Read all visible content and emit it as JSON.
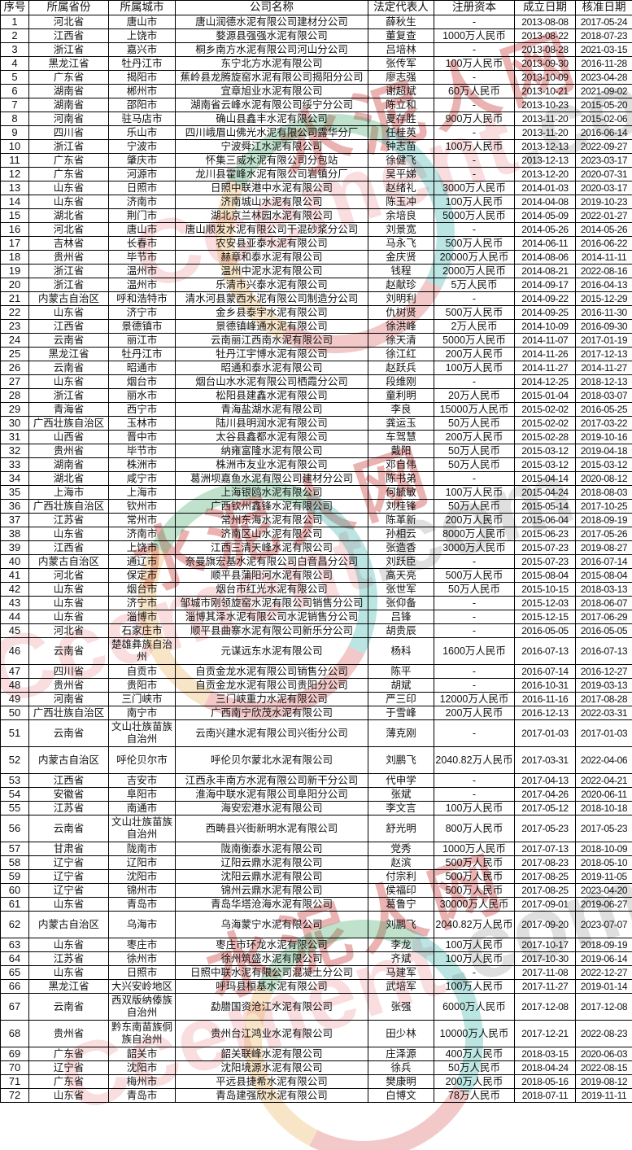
{
  "watermark": {
    "en": "Ccement",
    "com": ".com",
    "cn": "水泥人网"
  },
  "colors": {
    "watermark_red": "#cd3e3e",
    "watermark_pink": "#ec8e96",
    "watermark_gray": "#8c8c8c",
    "ring_green": "#2e9e5b",
    "ring_teal": "#1fa8a0",
    "ring_red": "#d23c3c",
    "ring_orange": "#e8a23c",
    "border": "#000000",
    "background": "#ffffff"
  },
  "table": {
    "headers": [
      "序号",
      "所属省份",
      "所属城市",
      "公司名称",
      "法定代表人",
      "注册资本",
      "成立日期",
      "核准日期"
    ],
    "rows": [
      [
        "1",
        "河北省",
        "唐山市",
        "唐山润德水泥有限公司建材分公司",
        "薛秋生",
        "-",
        "2013-08-08",
        "2017-05-24"
      ],
      [
        "2",
        "江西省",
        "上饶市",
        "婺源县强强水泥有限公司",
        "董复查",
        "1000万人民币",
        "2013-08-22",
        "2018-07-23"
      ],
      [
        "3",
        "浙江省",
        "嘉兴市",
        "桐乡南方水泥有限公司河山分公司",
        "吕培林",
        "-",
        "2013-08-28",
        "2021-03-15"
      ],
      [
        "4",
        "黑龙江省",
        "牡丹江市",
        "东宁北方水泥有限公司",
        "张传军",
        "100万人民币",
        "2013-09-30",
        "2016-11-28"
      ],
      [
        "5",
        "广东省",
        "揭阳市",
        "蕉岭县龙腾旋窑水泥有限公司揭阳分公司",
        "廖志强",
        "-",
        "2013-10-09",
        "2023-04-28"
      ],
      [
        "6",
        "湖南省",
        "郴州市",
        "宜章旭业水泥有限公司",
        "谢超斌",
        "60万人民币",
        "2013-10-21",
        "2021-09-02"
      ],
      [
        "7",
        "湖南省",
        "邵阳市",
        "湖南省云峰水泥有限公司绥宁分公司",
        "陈立和",
        "-",
        "2013-10-23",
        "2015-05-20"
      ],
      [
        "8",
        "河南省",
        "驻马店市",
        "确山县鑫丰水泥有限公司",
        "夏存胜",
        "900万人民币",
        "2013-11-20",
        "2015-02-06"
      ],
      [
        "9",
        "四川省",
        "乐山市",
        "四川峨眉山佛光水泥有限公司露华分厂",
        "任桂英",
        "-",
        "2013-11-20",
        "2016-06-14"
      ],
      [
        "10",
        "浙江省",
        "宁波市",
        "宁波舜江水泥有限公司",
        "钟志苗",
        "100万人民币",
        "2013-12-13",
        "2022-09-27"
      ],
      [
        "11",
        "广东省",
        "肇庆市",
        "怀集三威水泥有限公司分包站",
        "徐健飞",
        "-",
        "2013-12-13",
        "2023-03-17"
      ],
      [
        "12",
        "广东省",
        "河源市",
        "龙川县霍峰水泥有限公司岩镇分厂",
        "吴平娣",
        "-",
        "2013-12-20",
        "2020-07-31"
      ],
      [
        "13",
        "山东省",
        "日照市",
        "日照中联港中水泥有限公司",
        "赵绪礼",
        "3000万人民币",
        "2014-01-03",
        "2020-03-17"
      ],
      [
        "14",
        "山东省",
        "济南市",
        "济南城山水泥有限公司",
        "陈玉冲",
        "100万人民币",
        "2014-04-08",
        "2019-10-23"
      ],
      [
        "15",
        "湖北省",
        "荆门市",
        "湖北京兰林园水泥有限公司",
        "余培良",
        "5000万人民币",
        "2014-05-09",
        "2022-01-27"
      ],
      [
        "16",
        "河北省",
        "唐山市",
        "唐山顺发水泥有限公司干混砂浆分公司",
        "刘景宽",
        "-",
        "2014-05-26",
        "2014-05-26"
      ],
      [
        "17",
        "吉林省",
        "长春市",
        "农安县亚泰水泥有限公司",
        "马永飞",
        "500万人民币",
        "2014-06-11",
        "2016-06-22"
      ],
      [
        "18",
        "贵州省",
        "毕节市",
        "赫章和泰水泥有限公司",
        "金庆贤",
        "20000万人民币",
        "2014-08-06",
        "2014-11-11"
      ],
      [
        "19",
        "浙江省",
        "温州市",
        "温州中泥水泥有限公司",
        "钱程",
        "2000万人民币",
        "2014-08-21",
        "2022-08-16"
      ],
      [
        "20",
        "浙江省",
        "温州市",
        "乐清市兴泰水泥有限公司",
        "赵献珍",
        "5万人民币",
        "2014-09-17",
        "2016-04-13"
      ],
      [
        "21",
        "内蒙古自治区",
        "呼和浩特市",
        "清水河县蒙西水泥有限公司制造分公司",
        "刘明利",
        "-",
        "2014-09-22",
        "2015-12-29"
      ],
      [
        "22",
        "山东省",
        "济宁市",
        "金乡县泰宇水泥有限公司",
        "仇树贤",
        "500万人民币",
        "2014-09-25",
        "2016-11-30"
      ],
      [
        "23",
        "江西省",
        "景德镇市",
        "景德镇峰通水泥有限公司",
        "徐洪峰",
        "2万人民币",
        "2014-10-09",
        "2016-09-30"
      ],
      [
        "24",
        "云南省",
        "丽江市",
        "云南丽江西南水泥有限公司",
        "徐天清",
        "5000万人民币",
        "2014-11-07",
        "2017-01-19"
      ],
      [
        "25",
        "黑龙江省",
        "牡丹江市",
        "牡丹江宇博水泥有限公司",
        "徐江红",
        "200万人民币",
        "2014-11-26",
        "2017-12-13"
      ],
      [
        "26",
        "云南省",
        "昭通市",
        "昭通和泰水泥有限公司",
        "赵跃兵",
        "100万人民币",
        "2014-11-27",
        "2014-11-27"
      ],
      [
        "27",
        "山东省",
        "烟台市",
        "烟台山水水泥有限公司栖霞分公司",
        "段维刚",
        "-",
        "2014-12-25",
        "2018-12-13"
      ],
      [
        "28",
        "浙江省",
        "丽水市",
        "松阳县建鑫水泥有限公司",
        "童利明",
        "20万人民币",
        "2015-01-04",
        "2018-03-07"
      ],
      [
        "29",
        "青海省",
        "西宁市",
        "青海盐湖水泥有限公司",
        "李良",
        "15000万人民币",
        "2015-02-02",
        "2016-05-25"
      ],
      [
        "30",
        "广西壮族自治区",
        "玉林市",
        "陆川县明润水泥有限公司",
        "龚运玉",
        "50万人民币",
        "2015-02-02",
        "2017-03-22"
      ],
      [
        "31",
        "山西省",
        "晋中市",
        "太谷县鑫都水泥有限公司",
        "车驾慧",
        "200万人民币",
        "2015-02-28",
        "2019-10-16"
      ],
      [
        "32",
        "贵州省",
        "毕节市",
        "纳雍富隆水泥有限公司",
        "戴阳",
        "50万人民币",
        "2015-03-12",
        "2019-04-18"
      ],
      [
        "33",
        "湖南省",
        "株洲市",
        "株洲市友业水泥有限公司",
        "邓自伟",
        "50万人民币",
        "2015-03-12",
        "2015-03-12"
      ],
      [
        "34",
        "湖北省",
        "咸宁市",
        "葛洲坝嘉鱼水泥有限公司建材分公司",
        "陈书弟",
        "-",
        "2015-04-14",
        "2020-08-12"
      ],
      [
        "35",
        "上海市",
        "上海市",
        "上海银鸥水泥有限公司",
        "何毓敏",
        "100万人民币",
        "2015-04-24",
        "2018-08-03"
      ],
      [
        "36",
        "广西壮族自治区",
        "钦州市",
        "广西钦州鑫锋水泥有限公司",
        "刘桂锋",
        "50万人民币",
        "2015-05-14",
        "2017-10-25"
      ],
      [
        "37",
        "江苏省",
        "常州市",
        "常州东海水泥有限公司",
        "陈革新",
        "200万人民币",
        "2015-06-04",
        "2018-09-19"
      ],
      [
        "38",
        "山东省",
        "济南市",
        "济南区山水泥有限公司",
        "孙相云",
        "8000万人民币",
        "2015-06-23",
        "2017-05-26"
      ],
      [
        "39",
        "江西省",
        "上饶市",
        "江西三清天峰水泥有限公司",
        "张造香",
        "3000万人民币",
        "2015-07-23",
        "2019-08-27"
      ],
      [
        "40",
        "内蒙古自治区",
        "通辽市",
        "奈曼旗宏基水泥有限公司白音昌分公司",
        "刘跃臣",
        "-",
        "2015-07-23",
        "2016-07-14"
      ],
      [
        "41",
        "河北省",
        "保定市",
        "顺平县蒲阳河水泥有限公司",
        "高天亮",
        "500万人民币",
        "2015-08-04",
        "2015-08-04"
      ],
      [
        "42",
        "山东省",
        "烟台市",
        "烟台市红光水泥有限公司",
        "张世军",
        "50万人民币",
        "2015-10-15",
        "2018-03-13"
      ],
      [
        "43",
        "山东省",
        "济宁市",
        "邹城市刚领旋窑水泥有限公司销售分公司",
        "张仰备",
        "-",
        "2015-12-03",
        "2018-06-07"
      ],
      [
        "44",
        "山东省",
        "淄博市",
        "淄博其泽水泥有限公司水泥销售分公司",
        "吕锋",
        "-",
        "2015-12-15",
        "2017-06-29"
      ],
      [
        "45",
        "河北省",
        "石家庄市",
        "顺平县曲寨水泥有限公司新乐分公司",
        "胡贵辰",
        "-",
        "2016-05-05",
        "2016-05-05"
      ],
      [
        "46",
        "云南省",
        "楚雄彝族自治州",
        "元谋远东水泥有限公司",
        "杨科",
        "1600万人民币",
        "2016-07-13",
        "2016-07-13"
      ],
      [
        "47",
        "四川省",
        "自贡市",
        "自贡金龙水泥有限公司销售分公司",
        "陈平",
        "-",
        "2016-07-14",
        "2016-12-27"
      ],
      [
        "48",
        "贵州省",
        "贵阳市",
        "自贡金龙水泥有限公司贵阳分公司",
        "胡斌",
        "-",
        "2016-10-31",
        "2019-03-13"
      ],
      [
        "49",
        "河南省",
        "三门峡市",
        "三门峡重力水泥有限公司",
        "严三印",
        "12000万人民币",
        "2016-11-16",
        "2017-08-28"
      ],
      [
        "50",
        "广西壮族自治区",
        "南宁市",
        "广西南宁欣茂水泥有限公司",
        "于雪峰",
        "200万人民币",
        "2016-12-13",
        "2022-03-31"
      ],
      [
        "51",
        "云南省",
        "文山壮族苗族自治州",
        "云南兴建水泥有限公司兴街分公司",
        "薄克刚",
        "-",
        "2017-01-03",
        "2017-01-03"
      ],
      [
        "52",
        "内蒙古自治区",
        "呼伦贝尔市",
        "呼伦贝尔蒙北水泥有限公司",
        "刘鹏飞",
        "2040.82万人民币",
        "2017-03-31",
        "2022-04-06"
      ],
      [
        "53",
        "江西省",
        "吉安市",
        "江西永丰南方水泥有限公司新干分公司",
        "代申学",
        "-",
        "2017-04-13",
        "2022-04-21"
      ],
      [
        "54",
        "安徽省",
        "阜阳市",
        "淮海中联水泥有限公司阜阳分公司",
        "张斌",
        "-",
        "2017-04-26",
        "2020-06-11"
      ],
      [
        "55",
        "江苏省",
        "南通市",
        "海安宏港水泥有限公司",
        "李文言",
        "100万人民币",
        "2017-05-12",
        "2018-10-18"
      ],
      [
        "56",
        "云南省",
        "文山壮族苗族自治州",
        "西畴县兴街新明水泥有限公司",
        "舒光明",
        "800万人民币",
        "2017-05-23",
        "2017-05-23"
      ],
      [
        "57",
        "甘肃省",
        "陇南市",
        "陇南衡泰水泥有限公司",
        "党秀",
        "1000万人民币",
        "2017-07-13",
        "2018-10-09"
      ],
      [
        "58",
        "辽宁省",
        "辽阳市",
        "辽阳云鼎水泥有限公司",
        "赵滨",
        "500万人民币",
        "2017-08-23",
        "2018-05-10"
      ],
      [
        "59",
        "辽宁省",
        "沈阳市",
        "沈阳云鼎水泥有限公司",
        "付宗利",
        "500万人民币",
        "2017-08-25",
        "2019-11-05"
      ],
      [
        "60",
        "辽宁省",
        "锦州市",
        "锦州云鼎水泥有限公司",
        "侯福印",
        "500万人民币",
        "2017-08-25",
        "2023-04-20"
      ],
      [
        "61",
        "山东省",
        "青岛市",
        "青岛华塔沧海水泥有限公司",
        "葛鲁宁",
        "30000万人民币",
        "2017-09-01",
        "2019-06-27"
      ],
      [
        "62",
        "内蒙古自治区",
        "乌海市",
        "乌海蒙宁水泥有限公司",
        "刘鹏飞",
        "2040.82万人民币",
        "2017-09-20",
        "2023-07-07"
      ],
      [
        "63",
        "山东省",
        "枣庄市",
        "枣庄市环龙水泥有限公司",
        "李龙",
        "100万人民币",
        "2017-10-17",
        "2018-09-19"
      ],
      [
        "64",
        "江苏省",
        "徐州市",
        "徐州筑盛水泥有限公司",
        "齐斌",
        "100万人民币",
        "2017-10-30",
        "2019-06-14"
      ],
      [
        "65",
        "山东省",
        "日照市",
        "日照中联水泥有限公司混凝土分公司",
        "马建军",
        "-",
        "2017-11-08",
        "2022-12-27"
      ],
      [
        "66",
        "黑龙江省",
        "大兴安岭地区",
        "呼玛县桓基水泥有限公司",
        "武培军",
        "100万人民币",
        "2017-11-27",
        "2019-01-14"
      ],
      [
        "67",
        "云南省",
        "西双版纳傣族自治州",
        "勐腊国资沧江水泥有限公司",
        "张强",
        "6000万人民币",
        "2017-12-08",
        "2017-12-08"
      ],
      [
        "68",
        "贵州省",
        "黔东南苗族侗族自治州",
        "贵州台江鸿业水泥有限公司",
        "田少林",
        "10000万人民币",
        "2017-12-21",
        "2022-08-23"
      ],
      [
        "69",
        "广东省",
        "韶关市",
        "韶关联峰水泥有限公司",
        "庄泽源",
        "400万人民币",
        "2018-03-15",
        "2020-06-03"
      ],
      [
        "70",
        "辽宁省",
        "沈阳市",
        "沈阳境源水泥有限公司",
        "徐兵",
        "50万人民币",
        "2018-04-24",
        "2022-08-15"
      ],
      [
        "71",
        "广东省",
        "梅州市",
        "平远县捷希水泥有限公司",
        "樊康明",
        "200万人民币",
        "2018-05-16",
        "2019-08-12"
      ],
      [
        "72",
        "山东省",
        "青岛市",
        "青岛建强欣水泥有限公司",
        "白博文",
        "78万人民币",
        "2018-07-11",
        "2019-11-11"
      ]
    ]
  }
}
